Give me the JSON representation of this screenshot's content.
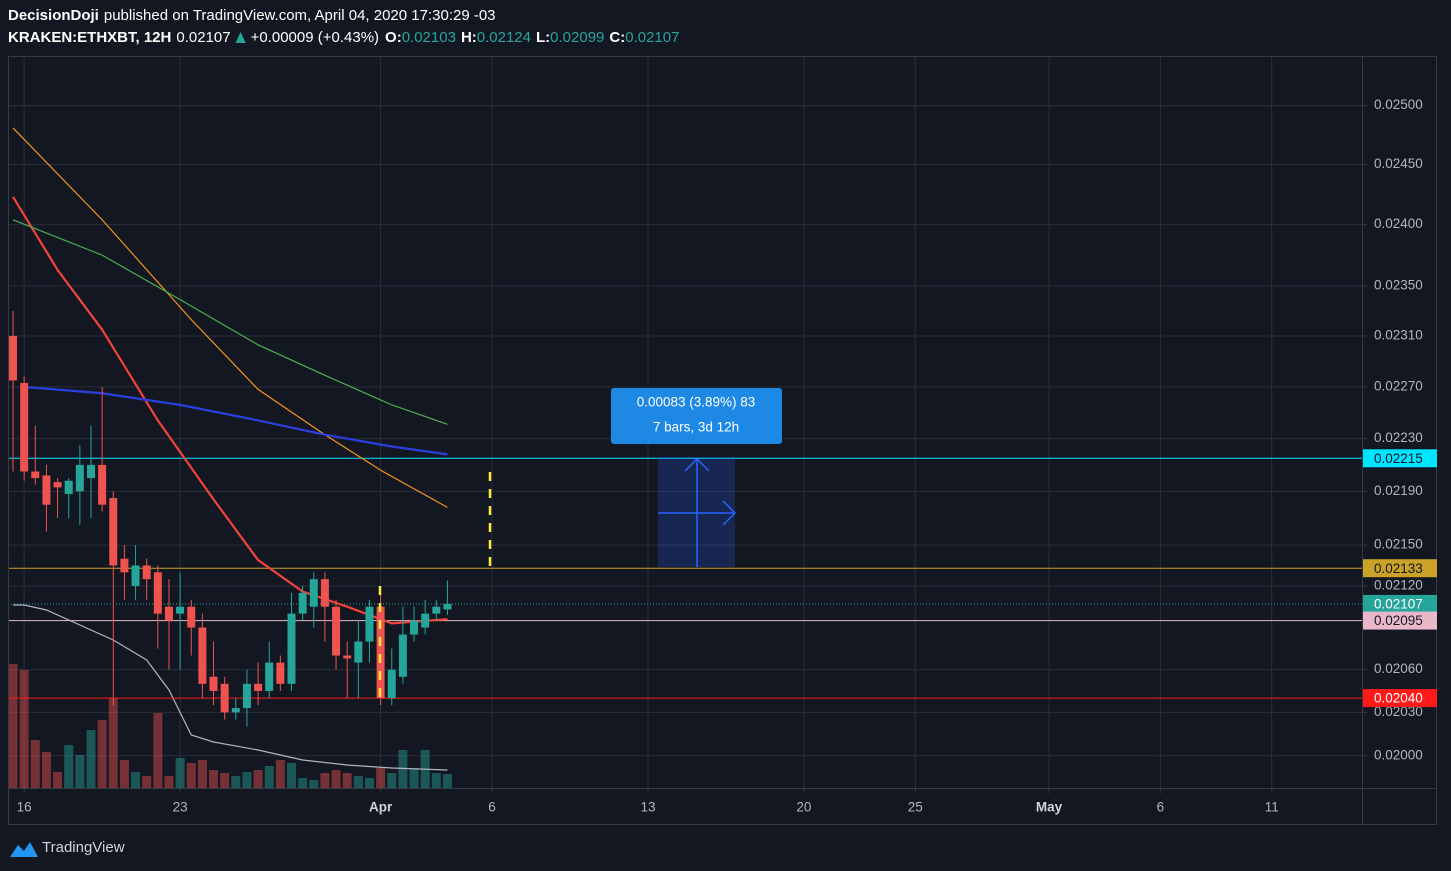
{
  "header": {
    "author": "DecisionDoji",
    "published": "published on TradingView.com, April 04, 2020 17:30:29 -03",
    "symbol": "KRAKEN:ETHXBT, 12H",
    "last": "0.02107",
    "change": "+0.00009 (+0.43%)",
    "ohlc": [
      {
        "label": "O:",
        "value": "0.02103"
      },
      {
        "label": "H:",
        "value": "0.02124"
      },
      {
        "label": "L:",
        "value": "0.02099"
      },
      {
        "label": "C:",
        "value": "0.02107"
      }
    ]
  },
  "chart_data": {
    "type": "candlestick",
    "log_scale": true,
    "grid": true,
    "up_color": "#26a69a",
    "down_color": "#ef5350",
    "ylim": [
      0.01978,
      0.02543
    ],
    "yticks": [
      {
        "value": 0.025,
        "label": "0.02500"
      },
      {
        "value": 0.0245,
        "label": "0.02450"
      },
      {
        "value": 0.024,
        "label": "0.02400"
      },
      {
        "value": 0.0235,
        "label": "0.02350"
      },
      {
        "value": 0.0231,
        "label": "0.02310"
      },
      {
        "value": 0.0227,
        "label": "0.02270"
      },
      {
        "value": 0.0223,
        "label": "0.02230"
      },
      {
        "value": 0.0219,
        "label": "0.02190"
      },
      {
        "value": 0.0215,
        "label": "0.02150"
      },
      {
        "value": 0.0212,
        "label": "0.02120"
      },
      {
        "value": 0.0206,
        "label": "0.02060"
      },
      {
        "value": 0.0203,
        "label": "0.02030"
      },
      {
        "value": 0.02,
        "label": "0.02000"
      }
    ],
    "xlim": [
      -0.45,
      121.1
    ],
    "xticks": [
      {
        "value": 1,
        "label": "16"
      },
      {
        "value": 15,
        "label": "23"
      },
      {
        "value": 33,
        "label": "Apr"
      },
      {
        "value": 43,
        "label": "6"
      },
      {
        "value": 57,
        "label": "13"
      },
      {
        "value": 71,
        "label": "20"
      },
      {
        "value": 81,
        "label": "25"
      },
      {
        "value": 93,
        "label": "May"
      },
      {
        "value": 103,
        "label": "6"
      },
      {
        "value": 113,
        "label": "11"
      }
    ],
    "open": [
      0.0231,
      0.02273,
      0.02205,
      0.02202,
      0.02197,
      0.02188,
      0.0219,
      0.022,
      0.0221,
      0.02185,
      0.0214,
      0.0212,
      0.02135,
      0.0213,
      0.02105,
      0.021,
      0.02105,
      0.0209,
      0.02055,
      0.0205,
      0.0203,
      0.02033,
      0.0205,
      0.02045,
      0.02065,
      0.0205,
      0.021,
      0.02105,
      0.02125,
      0.02105,
      0.0207,
      0.02065,
      0.0208,
      0.02105,
      0.0204,
      0.02055,
      0.02085,
      0.0209,
      0.021,
      0.02103
    ],
    "high": [
      0.0233,
      0.02278,
      0.0224,
      0.0221,
      0.022,
      0.022,
      0.02225,
      0.0224,
      0.0227,
      0.0219,
      0.0215,
      0.0215,
      0.0214,
      0.02135,
      0.02125,
      0.0213,
      0.0211,
      0.021,
      0.0208,
      0.02055,
      0.0204,
      0.0206,
      0.02065,
      0.0208,
      0.0207,
      0.02115,
      0.0212,
      0.0213,
      0.0213,
      0.0211,
      0.0208,
      0.02095,
      0.0211,
      0.02115,
      0.02075,
      0.02105,
      0.02105,
      0.0211,
      0.0211,
      0.02124
    ],
    "low": [
      0.02205,
      0.02198,
      0.02195,
      0.0216,
      0.0217,
      0.0217,
      0.02165,
      0.0217,
      0.02175,
      0.02035,
      0.0211,
      0.0211,
      0.0211,
      0.02075,
      0.0206,
      0.0206,
      0.0207,
      0.0204,
      0.02035,
      0.02025,
      0.02025,
      0.0202,
      0.02035,
      0.0204,
      0.02045,
      0.02045,
      0.02095,
      0.0209,
      0.0208,
      0.0206,
      0.0204,
      0.0204,
      0.02065,
      0.02035,
      0.02035,
      0.0205,
      0.0208,
      0.02085,
      0.02095,
      0.02099
    ],
    "close": [
      0.02275,
      0.02205,
      0.022,
      0.0218,
      0.02193,
      0.02198,
      0.0221,
      0.0221,
      0.0218,
      0.02135,
      0.0213,
      0.02135,
      0.02125,
      0.021,
      0.02095,
      0.02105,
      0.0209,
      0.0205,
      0.02045,
      0.0203,
      0.02033,
      0.0205,
      0.02045,
      0.02065,
      0.0205,
      0.021,
      0.02115,
      0.02125,
      0.02105,
      0.0207,
      0.02068,
      0.0208,
      0.02105,
      0.0204,
      0.0206,
      0.02085,
      0.02095,
      0.021,
      0.02105,
      0.02107
    ],
    "volume": [
      124,
      118,
      48,
      36,
      16,
      43,
      33,
      58,
      68,
      90,
      28,
      16,
      12,
      75,
      12,
      30,
      25,
      28,
      18,
      15,
      12,
      16,
      18,
      22,
      28,
      25,
      10,
      8,
      15,
      18,
      15,
      12,
      10,
      20,
      15,
      38,
      20,
      38,
      15,
      14
    ],
    "series": [
      {
        "color": "#f0433a",
        "x": [
          0,
          4,
          8,
          13,
          18,
          22,
          26,
          30,
          34,
          39
        ],
        "values": [
          0.02423,
          0.02363,
          0.02315,
          0.02244,
          0.02184,
          0.02139,
          0.02116,
          0.02105,
          0.02093,
          0.02096
        ]
      },
      {
        "color": "#f7931a",
        "x": [
          0,
          8,
          16,
          22,
          28,
          33,
          39
        ],
        "values": [
          0.02481,
          0.02404,
          0.02323,
          0.02268,
          0.02233,
          0.02206,
          0.02178
        ]
      },
      {
        "color": "#4caf50",
        "x": [
          0,
          8,
          15,
          22,
          28,
          34,
          39
        ],
        "values": [
          0.02404,
          0.02375,
          0.02339,
          0.02303,
          0.02279,
          0.02256,
          0.02241
        ]
      },
      {
        "color": "#2a3fe0",
        "x": [
          1,
          8,
          15,
          22,
          28,
          34,
          39
        ],
        "values": [
          0.0227,
          0.02265,
          0.02256,
          0.02244,
          0.02233,
          0.02224,
          0.02218
        ]
      }
    ],
    "volume_ma": {
      "color": "#b2b5be",
      "x": [
        0,
        1,
        3,
        6,
        9,
        12,
        14,
        16,
        18,
        22,
        26,
        30,
        34,
        39
      ],
      "values": [
        183,
        183,
        178,
        163,
        148,
        128,
        98,
        53,
        46,
        38,
        28,
        23,
        20,
        18
      ]
    },
    "levels": [
      {
        "value": 0.02215,
        "label": "0.02215",
        "color": "#00e5ff",
        "text_color": "#131722"
      },
      {
        "value": 0.02133,
        "label": "0.02133",
        "color": "#c9a227",
        "text_color": "#131722"
      },
      {
        "value": 0.02107,
        "label": "0.02107",
        "color": "#26a69a",
        "text_color": "#ffffff",
        "dotted": true
      },
      {
        "value": 0.02095,
        "label": "0.02095",
        "color": "#e8b8c8",
        "text_color": "#131722"
      },
      {
        "value": 0.0204,
        "label": "0.02040",
        "color": "#ff1a1a",
        "text_color": "#ffffff"
      }
    ],
    "measure": {
      "line1": "0.00083 (3.89%) 83",
      "line2": "7 bars, 3d 12h"
    }
  },
  "footer": {
    "brand": "TradingView"
  }
}
